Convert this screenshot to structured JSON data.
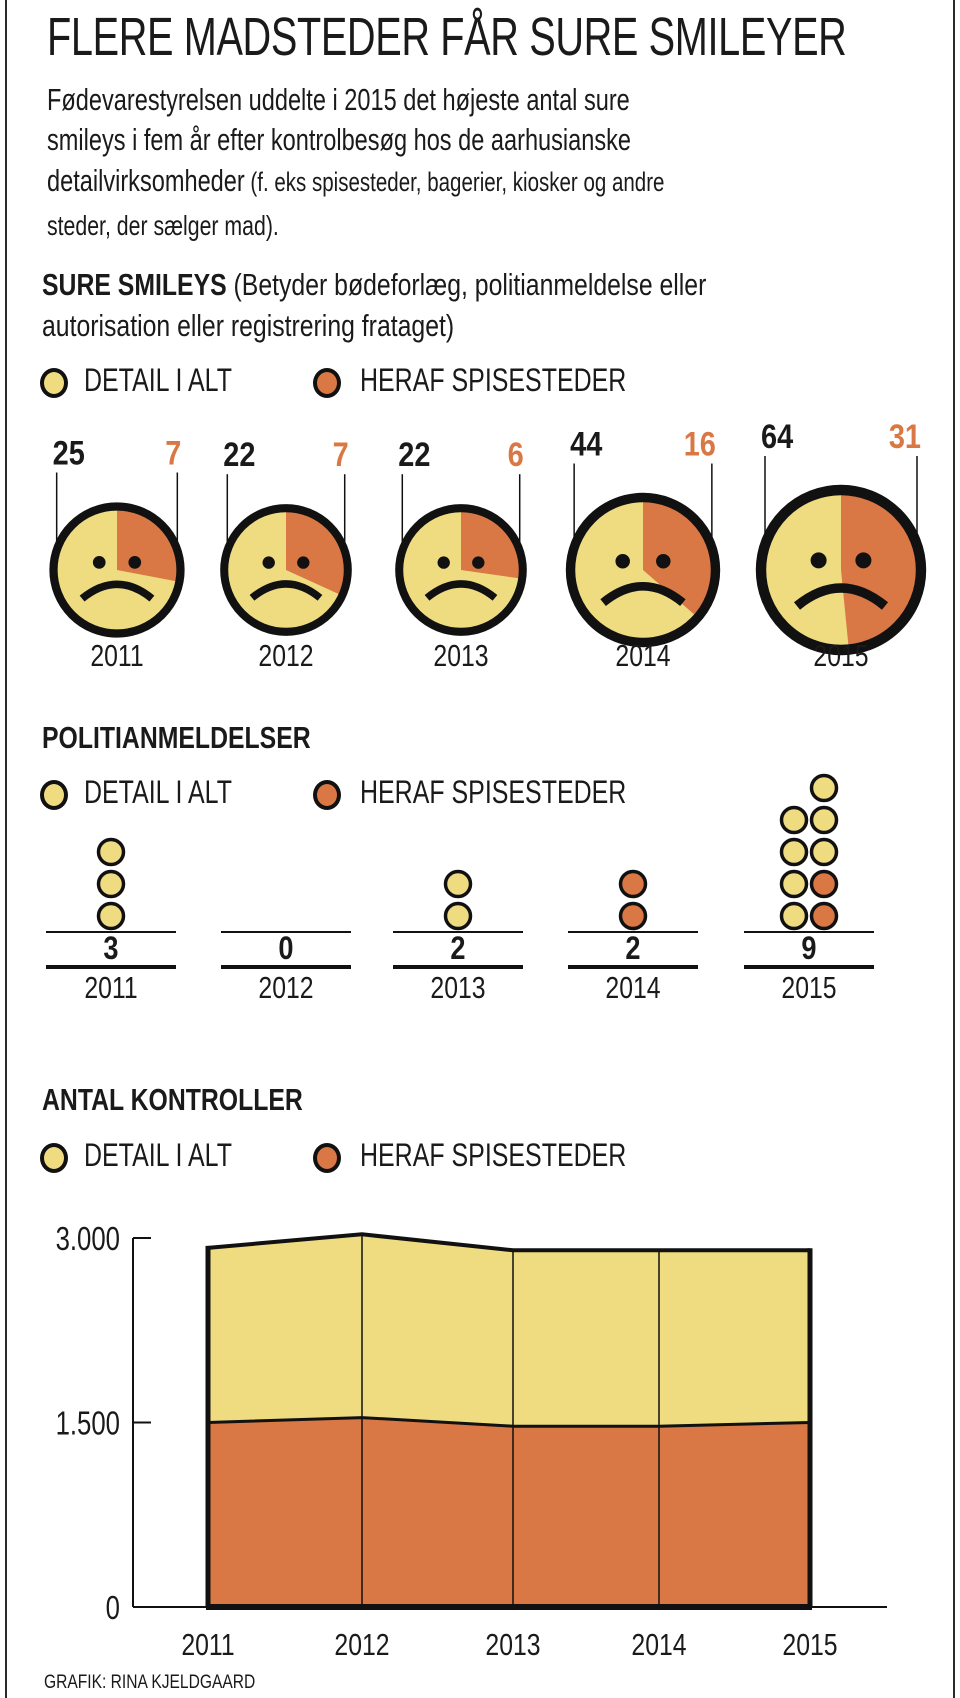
{
  "title": "FLERE MADSTEDER FÅR SURE SMILEYER",
  "intro": {
    "line1": "Fødevarestyrelsen uddelte i 2015 det højeste antal sure",
    "line2": "smileys i fem år efter kontrolbesøg hos de aarhusianske",
    "line3_main": "detailvirksomheder",
    "line3_small": " (f. eks spisesteder, bagerier, kiosker og andre",
    "line4": "steder, der sælger mad)."
  },
  "colors": {
    "detail": "#EFDB80",
    "spisesteder": "#D97844",
    "outline": "#111111",
    "text": "#1a1a1a"
  },
  "legend": {
    "detail_label": "DETAIL I ALT",
    "spisesteder_label": "HERAF SPISESTEDER",
    "detail_icon": "yellow-circle-icon",
    "spisesteder_icon": "orange-circle-icon"
  },
  "sure_smileys": {
    "heading": "SURE SMILEYS",
    "note_line1": " (Betyder bødeforlæg, politianmeldelse eller",
    "note_line2": "autorisation eller registrering frataget)"
  },
  "politianmeldelser": {
    "heading": "POLITIANMELDELSER"
  },
  "antal_kontroller": {
    "heading": "ANTAL KONTROLLER"
  },
  "footer": "GRAFIK: RINA KJELDGAARD",
  "chart_data": [
    {
      "type": "pie",
      "title": "SURE SMILEYS",
      "subtitle": "(Betyder bødeforlæg, politianmeldelse eller autorisation eller registrering frataget)",
      "categories": [
        "2011",
        "2012",
        "2013",
        "2014",
        "2015"
      ],
      "series": [
        {
          "name": "DETAIL I ALT",
          "values": [
            25,
            22,
            22,
            44,
            64
          ]
        },
        {
          "name": "HERAF SPISESTEDER",
          "values": [
            7,
            7,
            6,
            16,
            31
          ]
        }
      ],
      "encoding": "sad-face pie per year; face size scales with total, orange wedge = share of spisesteder",
      "legend": "top-left"
    },
    {
      "type": "bar",
      "title": "POLITIANMELDELSER",
      "categories": [
        "2011",
        "2012",
        "2013",
        "2014",
        "2015"
      ],
      "series": [
        {
          "name": "DETAIL I ALT",
          "values": [
            3,
            0,
            2,
            2,
            9
          ]
        },
        {
          "name": "HERAF SPISESTEDER",
          "values": [
            0,
            0,
            0,
            2,
            2
          ]
        }
      ],
      "encoding": "stacked dot columns, one dot per case",
      "legend": "top-left"
    },
    {
      "type": "area",
      "title": "ANTAL KONTROLLER",
      "categories": [
        "2011",
        "2012",
        "2013",
        "2014",
        "2015"
      ],
      "series": [
        {
          "name": "DETAIL I ALT",
          "values": [
            2920,
            3030,
            2900,
            2900,
            2900
          ]
        },
        {
          "name": "HERAF SPISESTEDER",
          "values": [
            1500,
            1540,
            1470,
            1470,
            1500
          ]
        }
      ],
      "yticks": [
        0,
        1500,
        3000
      ],
      "ytick_labels": [
        "0",
        "1.500",
        "3.000"
      ],
      "ylim": [
        0,
        3000
      ],
      "xlabel": "",
      "ylabel": "",
      "grid": false,
      "legend": "top-left"
    }
  ]
}
